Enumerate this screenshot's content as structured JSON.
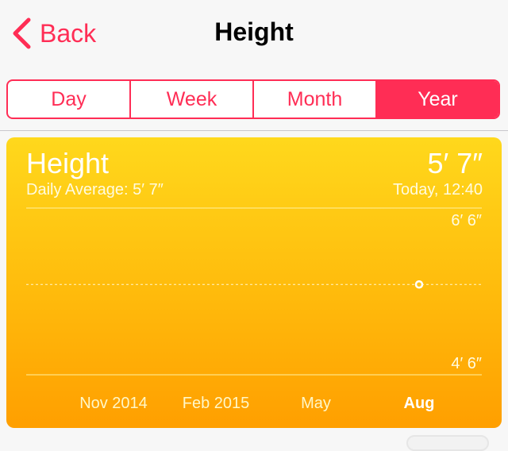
{
  "nav": {
    "back_label": "Back",
    "title": "Height"
  },
  "segments": [
    "Day",
    "Week",
    "Month",
    "Year"
  ],
  "selected_segment": "Year",
  "card": {
    "title": "Height",
    "daily_average": "Daily Average: 5′ 7″",
    "value": "5′ 7″",
    "time": "Today, 12:40"
  },
  "colors": {
    "accent": "#ff2d55",
    "card_top": "#ffd81c",
    "card_bottom": "#ff9f00"
  },
  "chart_data": {
    "type": "scatter",
    "y_unit": "inches",
    "ylim": [
      54,
      78
    ],
    "y_tick_labels": [
      "6′ 6″",
      "4′ 6″"
    ],
    "x_tick_labels": [
      "Nov 2014",
      "Feb 2015",
      "May",
      "Aug"
    ],
    "highlighted_x_label": "Aug",
    "average_line": 67,
    "points": [
      {
        "x": "Aug",
        "y": 67
      }
    ],
    "grid": true
  }
}
